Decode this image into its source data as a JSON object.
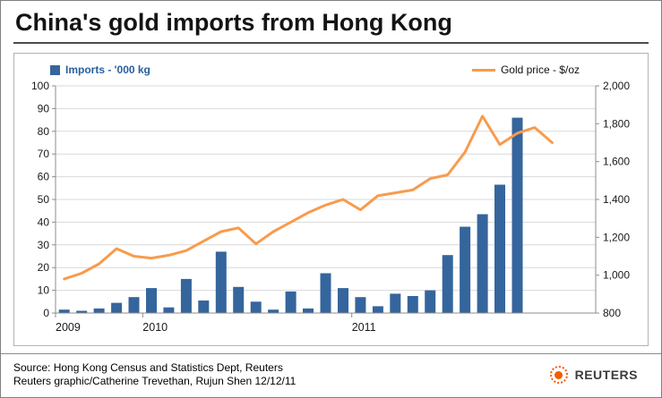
{
  "title": "China's gold imports from Hong Kong",
  "footer": {
    "source_line1": "Source: Hong Kong Census and Statistics Dept, Reuters",
    "source_line2": "Reuters graphic/Catherine Trevethan, Rujun Shen 12/12/11",
    "brand": "REUTERS"
  },
  "colors": {
    "bar": "#35659d",
    "line": "#f89b4c",
    "legend_text": "#285f9e",
    "grid": "#d8d8d8",
    "axis": "#8c8c8c",
    "text": "#1a1a1a",
    "reuters_orange": "#f25c05"
  },
  "chart_data": {
    "type": "combo",
    "title": "China's gold imports from Hong Kong",
    "legend_position": "top",
    "grid": true,
    "series": [
      {
        "name": "Imports - '000 kg",
        "type": "bar",
        "axis": "left",
        "values": [
          1.5,
          1,
          2,
          4.5,
          7,
          11,
          2.5,
          15,
          5.5,
          27,
          11.5,
          5,
          1.5,
          9.5,
          2,
          17.5,
          11,
          7,
          3,
          8.5,
          7.5,
          10,
          25.5,
          38,
          43.5,
          56.5,
          86
        ]
      },
      {
        "name": "Gold price - $/oz",
        "type": "line",
        "axis": "right",
        "values": [
          980,
          1010,
          1060,
          1140,
          1100,
          1090,
          1105,
          1130,
          1180,
          1230,
          1250,
          1165,
          1230,
          1280,
          1330,
          1370,
          1400,
          1345,
          1420,
          1435,
          1450,
          1510,
          1530,
          1650,
          1840,
          1690,
          1750,
          1780,
          1700
        ]
      }
    ],
    "x_axis": {
      "slots": 31,
      "tick_labels": [
        {
          "label": "2009",
          "slot": 0
        },
        {
          "label": "2010",
          "slot": 5
        },
        {
          "label": "2011",
          "slot": 17
        }
      ]
    },
    "left_axis": {
      "min": 0,
      "max": 100,
      "step": 10
    },
    "right_axis": {
      "min": 800,
      "max": 2000,
      "step": 200,
      "format": "comma"
    }
  }
}
